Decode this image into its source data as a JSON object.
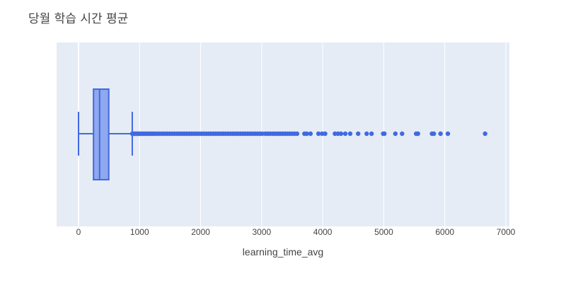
{
  "chart_data": {
    "type": "box",
    "orientation": "horizontal",
    "title": "당월 학습 시간 평균",
    "xlabel": "learning_time_avg",
    "ylabel": "",
    "xlim": [
      -350,
      7000
    ],
    "x_ticks": [
      0,
      1000,
      2000,
      3000,
      4000,
      5000,
      6000,
      7000
    ],
    "x_tick_labels": [
      "0",
      "1000",
      "2000",
      "3000",
      "4000",
      "5000",
      "6000",
      "7000"
    ],
    "grid": true,
    "legend": "none",
    "colors": {
      "box_line": "#4169e1",
      "box_fill": "#8fa8ee",
      "plot_bg": "#e5ecf6",
      "grid": "#ffffff"
    },
    "box": {
      "min": 0,
      "q1": 245,
      "median": 345,
      "q3": 495,
      "upper_fence": 880
    },
    "outliers": [
      880,
      895,
      910,
      930,
      950,
      970,
      990,
      1010,
      1040,
      1070,
      1100,
      1130,
      1160,
      1190,
      1220,
      1250,
      1290,
      1330,
      1370,
      1410,
      1450,
      1490,
      1530,
      1570,
      1610,
      1650,
      1690,
      1730,
      1770,
      1810,
      1850,
      1890,
      1930,
      1970,
      2010,
      2050,
      2090,
      2130,
      2170,
      2210,
      2250,
      2290,
      2330,
      2370,
      2410,
      2450,
      2490,
      2530,
      2570,
      2610,
      2650,
      2690,
      2730,
      2770,
      2810,
      2850,
      2890,
      2930,
      2970,
      3010,
      3060,
      3100,
      3140,
      3180,
      3220,
      3260,
      3300,
      3340,
      3380,
      3420,
      3460,
      3500,
      3540,
      3580,
      3700,
      3740,
      3800,
      3930,
      3990,
      4040,
      4200,
      4250,
      4300,
      4370,
      4450,
      4580,
      4720,
      4800,
      4990,
      5010,
      5190,
      5300,
      5530,
      5560,
      5790,
      5820,
      5930,
      6050,
      6660
    ]
  }
}
